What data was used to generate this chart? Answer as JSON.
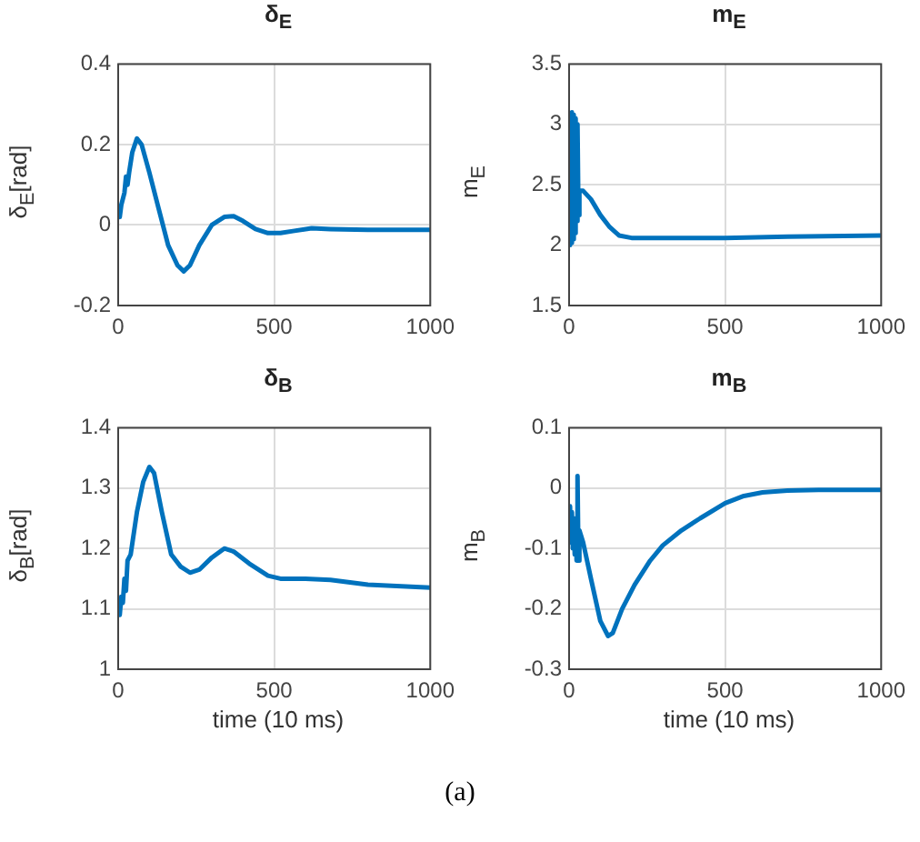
{
  "chart_data": [
    {
      "type": "line",
      "title": "δ$_{E}$",
      "ylabel": "δ$_{E}$[rad]",
      "color": "#0072bd",
      "grid": true,
      "xlim": [
        0,
        1000
      ],
      "xticks": [
        0,
        500,
        1000
      ],
      "ylim": [
        -0.2,
        0.4
      ],
      "yticks": [
        -0.2,
        0,
        0.2,
        0.4
      ],
      "x": [
        0,
        5,
        10,
        20,
        25,
        30,
        35,
        45,
        60,
        75,
        100,
        130,
        160,
        190,
        210,
        230,
        260,
        300,
        340,
        370,
        400,
        440,
        480,
        520,
        560,
        620,
        680,
        800,
        1000
      ],
      "values": [
        0.04,
        0.02,
        0.05,
        0.08,
        0.12,
        0.1,
        0.13,
        0.18,
        0.215,
        0.2,
        0.13,
        0.04,
        -0.05,
        -0.1,
        -0.115,
        -0.1,
        -0.05,
        0,
        0.02,
        0.022,
        0.01,
        -0.01,
        -0.02,
        -0.02,
        -0.015,
        -0.008,
        -0.01,
        -0.012,
        -0.012
      ]
    },
    {
      "type": "line",
      "title": "m$_{E}$",
      "ylabel": "m$_{E}$",
      "color": "#0072bd",
      "grid": true,
      "xlim": [
        0,
        1000
      ],
      "xticks": [
        0,
        500,
        1000
      ],
      "ylim": [
        1.5,
        3.5
      ],
      "yticks": [
        1.5,
        2,
        2.5,
        3,
        3.5
      ],
      "x": [
        0,
        3,
        6,
        9,
        12,
        15,
        18,
        21,
        24,
        27,
        30,
        33,
        45,
        70,
        100,
        130,
        160,
        200,
        300,
        500,
        700,
        1000
      ],
      "values": [
        2.0,
        3.05,
        2.02,
        3.1,
        2.05,
        3.08,
        2.1,
        3.05,
        2.2,
        3.0,
        2.25,
        2.45,
        2.45,
        2.38,
        2.25,
        2.15,
        2.08,
        2.06,
        2.06,
        2.06,
        2.07,
        2.08
      ]
    },
    {
      "type": "line",
      "title": "δ$_{B}$",
      "ylabel": "δ$_{B}$[rad]",
      "xlabel": "time (10 ms)",
      "color": "#0072bd",
      "grid": true,
      "xlim": [
        0,
        1000
      ],
      "xticks": [
        0,
        500,
        1000
      ],
      "ylim": [
        1,
        1.4
      ],
      "yticks": [
        1,
        1.1,
        1.2,
        1.3,
        1.4
      ],
      "x": [
        0,
        5,
        10,
        15,
        20,
        25,
        30,
        40,
        60,
        80,
        100,
        115,
        140,
        170,
        200,
        230,
        260,
        300,
        340,
        370,
        420,
        480,
        520,
        600,
        680,
        800,
        1000
      ],
      "values": [
        1.1,
        1.09,
        1.12,
        1.11,
        1.15,
        1.13,
        1.18,
        1.19,
        1.26,
        1.31,
        1.335,
        1.325,
        1.26,
        1.19,
        1.17,
        1.16,
        1.165,
        1.185,
        1.2,
        1.195,
        1.175,
        1.155,
        1.15,
        1.15,
        1.148,
        1.14,
        1.135
      ]
    },
    {
      "type": "line",
      "title": "m$_{B}$",
      "ylabel": "m$_{B}$",
      "xlabel": "time (10 ms)",
      "color": "#0072bd",
      "grid": true,
      "xlim": [
        0,
        1000
      ],
      "xticks": [
        0,
        500,
        1000
      ],
      "ylim": [
        -0.3,
        0.1
      ],
      "yticks": [
        -0.3,
        -0.2,
        -0.1,
        0,
        0.1
      ],
      "annotations": [
        "(a)"
      ],
      "x": [
        0,
        3,
        6,
        9,
        12,
        15,
        18,
        21,
        24,
        27,
        30,
        33,
        45,
        70,
        100,
        125,
        140,
        170,
        210,
        260,
        300,
        360,
        420,
        500,
        560,
        620,
        700,
        800,
        1000
      ],
      "values": [
        -0.05,
        -0.03,
        -0.09,
        -0.04,
        -0.1,
        -0.05,
        -0.11,
        -0.06,
        -0.12,
        0.02,
        -0.12,
        -0.07,
        -0.09,
        -0.15,
        -0.22,
        -0.245,
        -0.24,
        -0.2,
        -0.16,
        -0.12,
        -0.095,
        -0.07,
        -0.05,
        -0.025,
        -0.013,
        -0.007,
        -0.004,
        -0.003,
        -0.003
      ]
    }
  ]
}
